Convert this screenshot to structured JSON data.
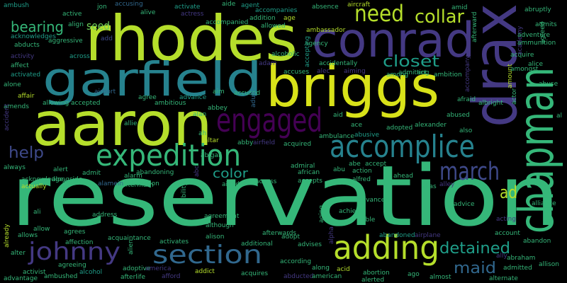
{
  "words": [
    "reservation",
    "rhodes",
    "conrad",
    "drax",
    "garfield",
    "briggs",
    "aaron",
    "chapman",
    "engaged",
    "accomplice",
    "expedition",
    "march",
    "adding",
    "section",
    "johnny",
    "need",
    "collar",
    "bearing",
    "seed",
    "closet",
    "help",
    "color",
    "ad",
    "detained",
    "maid",
    "ambush",
    "jon",
    "accusing",
    "alive",
    "activate",
    "actress",
    "aide",
    "agent",
    "accompanied",
    "addition",
    "age",
    "accompanies",
    "absence",
    "aircraft",
    "allowed",
    "ambassador",
    "agency",
    "alcoholic",
    "accepting",
    "acknowledges",
    "abducts",
    "aggressive",
    "activity",
    "affect",
    "activated",
    "alone",
    "affair",
    "amends",
    "accident",
    "active",
    "align",
    "add",
    "across",
    "allowing",
    "accepted",
    "agree",
    "ambitious",
    "advance",
    "airport",
    "alan",
    "aim",
    "accused",
    "abbey",
    "adult",
    "ah",
    "allie",
    "altar",
    "abby",
    "airfield",
    "acquired",
    "abigail",
    "aid",
    "ace",
    "abusive",
    "adopted",
    "alexander",
    "also",
    "abused",
    "afraid",
    "albright",
    "al",
    "accuses",
    "adam",
    "accidentally",
    "alec",
    "aiming",
    "among",
    "admitting",
    "act",
    "ambition",
    "accompany",
    "amount",
    "amongst",
    "alice",
    "abuse",
    "actor",
    "acquire",
    "academy",
    "adventure",
    "ammunition",
    "agreed",
    "admits",
    "afterward",
    "ambulance",
    "alarm",
    "aftermath",
    "alert",
    "alongside",
    "always",
    "acknowledge",
    "ambrose",
    "admit",
    "abandoning",
    "ability",
    "aided",
    "alamein",
    "abduction",
    "actually",
    "abc",
    "access",
    "accepts",
    "african",
    "admiral",
    "abe",
    "abu",
    "accept",
    "action",
    "alfred",
    "ahead",
    "alias",
    "alley",
    "ali",
    "address",
    "allow",
    "agreement",
    "although",
    "alison",
    "advanced",
    "achieve",
    "able",
    "aging",
    "alpha",
    "abandoned",
    "airplane",
    "advice",
    "acting",
    "alliance",
    "account",
    "abandon",
    "ally",
    "already",
    "allows",
    "agrees",
    "acquaintance",
    "affection",
    "alien",
    "activates",
    "additional",
    "adopt",
    "advises",
    "afterwards",
    "alter",
    "activist",
    "advantage",
    "ambushed",
    "agreeing",
    "alcohol",
    "adoptive",
    "afterlife",
    "america",
    "afford",
    "addict",
    "acquires",
    "according",
    "abducted",
    "along",
    "acid",
    "american",
    "abortion",
    "alerted",
    "ago",
    "almost",
    "alternate",
    "admitted",
    "abraham",
    "allison",
    "amid",
    "abruptly"
  ]
}
